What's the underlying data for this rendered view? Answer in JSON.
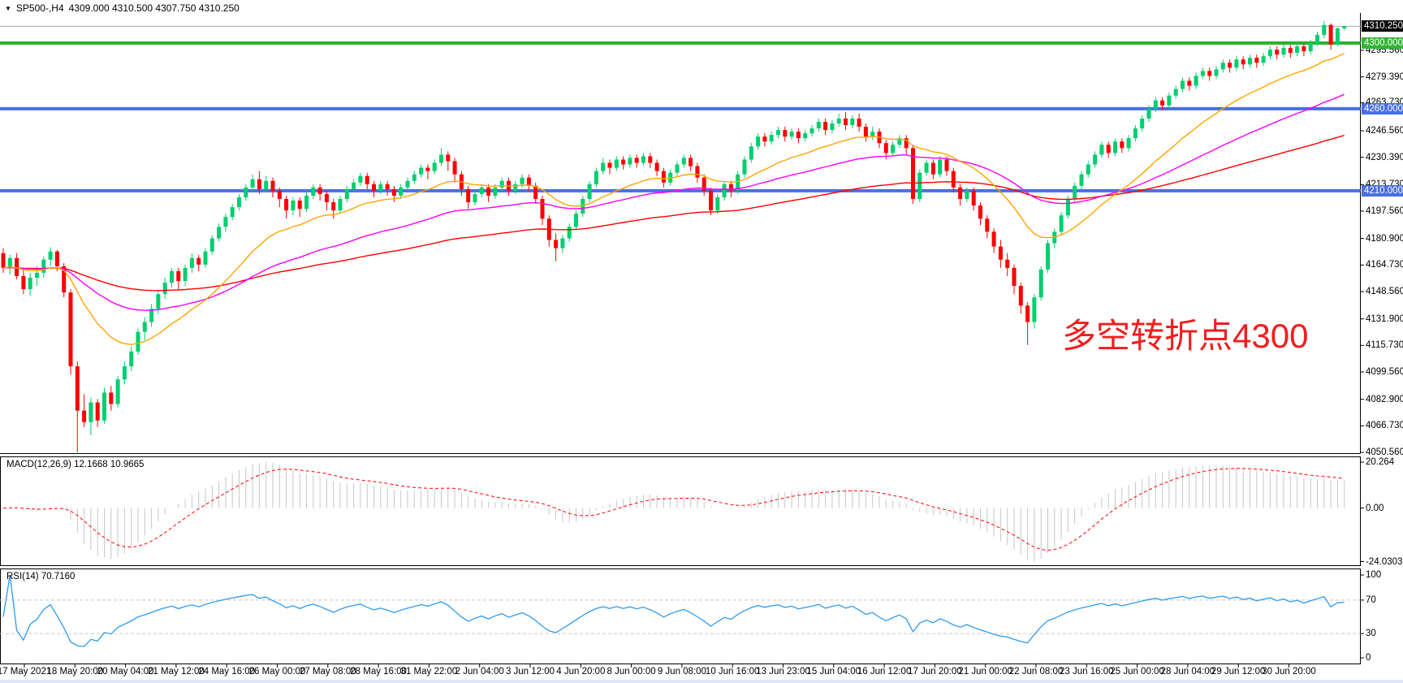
{
  "header": {
    "dropdown_icon": "▼",
    "symbol_period": "SP500-,H4",
    "ohlc_text": "4309.000 4310.500 4307.750 4310.250"
  },
  "annotation": {
    "text": "多空转折点4300"
  },
  "indicators": {
    "macd": {
      "label": "MACD(12,26,9) 12.1668 10.9665",
      "axis_labels": [
        "20.264",
        "0.00",
        "-24.0303"
      ]
    },
    "rsi": {
      "label": "RSI(14) 70.7160",
      "axis_labels": [
        "100",
        "70",
        "30",
        "0"
      ]
    }
  },
  "price_axis": {
    "tick_labels": [
      "4295.560",
      "4279.390",
      "4263.730",
      "4246.560",
      "4230.390",
      "4213.730",
      "4197.560",
      "4180.900",
      "4164.730",
      "4148.560",
      "4131.900",
      "4115.730",
      "4099.560",
      "4082.900",
      "4066.730",
      "4050.560"
    ],
    "badges": [
      {
        "text": "4310.250",
        "price": 4310.25,
        "bg": "#000000"
      },
      {
        "text": "4300.000",
        "price": 4300.0,
        "bg": "#35b435"
      },
      {
        "text": "4260.000",
        "price": 4260.0,
        "bg": "#4a6fe0"
      },
      {
        "text": "4210.000",
        "price": 4210.0,
        "bg": "#4a6fe0"
      }
    ]
  },
  "time_axis": {
    "labels": [
      "17 May 2021",
      "18 May 20:00",
      "20 May 04:00",
      "21 May 12:00",
      "24 May 16:00",
      "26 May 00:00",
      "27 May 08:00",
      "28 May 16:00",
      "31 May 22:00",
      "2 Jun 04:00",
      "3 Jun 12:00",
      "4 Jun 20:00",
      "8 Jun 00:00",
      "9 Jun 08:00",
      "10 Jun 16:00",
      "13 Jun 23:00",
      "15 Jun 04:00",
      "16 Jun 12:00",
      "17 Jun 20:00",
      "21 Jun 00:00",
      "22 Jun 08:00",
      "23 Jun 16:00",
      "25 Jun 00:00",
      "28 Jun 04:00",
      "29 Jun 12:00",
      "30 Jun 20:00"
    ]
  },
  "colors": {
    "bull": "#00cf6f",
    "bear": "#ff0000",
    "ma_fast": "#ffa500",
    "ma_mid": "#ff00ff",
    "ma_slow": "#ff0000",
    "bid_line": "#a8a8a8",
    "pivot_line": "#28b428",
    "blue_line": "#4a70e0",
    "macd_hist": "#c6c6c6",
    "macd_signal": "#ff0000",
    "rsi_line": "#2f9bf0",
    "rsi_level": "#c8c8c8",
    "annotation": "#f21d1d",
    "border": "#000000"
  },
  "chart_data": {
    "type": "candlestick",
    "symbol": "SP500-",
    "timeframe": "H4",
    "title": "SP500-,H4 4309.000 4310.500 4307.750 4310.250",
    "current_bar": {
      "open": 4309.0,
      "high": 4310.5,
      "low": 4307.75,
      "close": 4310.25
    },
    "ylim": [
      4050.56,
      4315.0
    ],
    "hlines": [
      {
        "name": "bid",
        "price": 4310.25
      },
      {
        "name": "pivot",
        "price": 4300.0
      },
      {
        "name": "resistance",
        "price": 4260.0
      },
      {
        "name": "support",
        "price": 4210.0
      }
    ],
    "overlays": [
      {
        "name": "ema-20",
        "color_key": "ma_fast",
        "period": 20
      },
      {
        "name": "ema-50",
        "color_key": "ma_mid",
        "period": 50
      },
      {
        "name": "ema-110",
        "color_key": "ma_slow",
        "period": 110
      }
    ],
    "macd": {
      "fast": 12,
      "slow": 26,
      "signal": 9,
      "last": 12.1668,
      "last_signal": 10.9665,
      "range": [
        -24.0303,
        20.264
      ]
    },
    "rsi": {
      "period": 14,
      "last": 70.716,
      "levels": [
        70,
        30
      ]
    },
    "candles": [
      [
        4172,
        4175,
        4160,
        4163
      ],
      [
        4163,
        4171,
        4159,
        4169
      ],
      [
        4169,
        4172,
        4156,
        4158
      ],
      [
        4158,
        4163,
        4147,
        4150
      ],
      [
        4150,
        4160,
        4146,
        4157
      ],
      [
        4157,
        4164,
        4152,
        4160
      ],
      [
        4160,
        4170,
        4157,
        4168
      ],
      [
        4168,
        4175.5,
        4164,
        4173
      ],
      [
        4173,
        4174,
        4161,
        4164
      ],
      [
        4164,
        4166,
        4145,
        4148
      ],
      [
        4148,
        4150,
        4098,
        4103
      ],
      [
        4103,
        4106,
        4050.56,
        4076
      ],
      [
        4076,
        4086,
        4066,
        4069
      ],
      [
        4069,
        4084,
        4061,
        4081
      ],
      [
        4081,
        4083,
        4066,
        4070
      ],
      [
        4070,
        4090,
        4068,
        4087
      ],
      [
        4087,
        4091,
        4076,
        4080
      ],
      [
        4080,
        4097,
        4078,
        4095
      ],
      [
        4095,
        4106,
        4092,
        4103
      ],
      [
        4103,
        4115,
        4100,
        4112
      ],
      [
        4112,
        4126,
        4110,
        4124
      ],
      [
        4124,
        4133,
        4119,
        4130
      ],
      [
        4130,
        4141,
        4127,
        4138
      ],
      [
        4138,
        4149,
        4135,
        4147
      ],
      [
        4147,
        4157,
        4144,
        4154
      ],
      [
        4154,
        4163,
        4151,
        4161
      ],
      [
        4161,
        4163,
        4150,
        4155
      ],
      [
        4155,
        4165,
        4152,
        4163
      ],
      [
        4163,
        4172,
        4160,
        4169
      ],
      [
        4169,
        4171,
        4161,
        4165
      ],
      [
        4165,
        4175,
        4163,
        4173
      ],
      [
        4173,
        4183,
        4171,
        4181
      ],
      [
        4181,
        4190,
        4179,
        4188
      ],
      [
        4188,
        4196,
        4185,
        4194
      ],
      [
        4194,
        4202,
        4192,
        4200
      ],
      [
        4200,
        4208,
        4198,
        4206
      ],
      [
        4206,
        4214,
        4204,
        4212
      ],
      [
        4212,
        4220,
        4210,
        4217
      ],
      [
        4217,
        4222,
        4208,
        4211
      ],
      [
        4211,
        4219,
        4209,
        4216
      ],
      [
        4216,
        4218,
        4206,
        4210
      ],
      [
        4210,
        4212,
        4200,
        4205
      ],
      [
        4205,
        4207,
        4193,
        4198
      ],
      [
        4198,
        4206,
        4195,
        4204
      ],
      [
        4204,
        4206,
        4194,
        4199
      ],
      [
        4199,
        4209,
        4197,
        4207
      ],
      [
        4207,
        4214,
        4205,
        4212
      ],
      [
        4212,
        4214,
        4204,
        4208
      ],
      [
        4208,
        4210,
        4198,
        4203
      ],
      [
        4203,
        4205,
        4193,
        4198
      ],
      [
        4198,
        4207,
        4196,
        4205
      ],
      [
        4205,
        4213,
        4203,
        4211
      ],
      [
        4211,
        4217,
        4209,
        4215
      ],
      [
        4215,
        4221,
        4213,
        4219
      ],
      [
        4219,
        4221,
        4211,
        4214
      ],
      [
        4214,
        4216,
        4206,
        4210
      ],
      [
        4210,
        4216,
        4208,
        4214
      ],
      [
        4214,
        4216,
        4207,
        4211
      ],
      [
        4211,
        4213,
        4203,
        4207
      ],
      [
        4207,
        4214,
        4205,
        4212
      ],
      [
        4212,
        4218,
        4210,
        4216
      ],
      [
        4216,
        4222,
        4214,
        4220
      ],
      [
        4220,
        4226,
        4218,
        4224
      ],
      [
        4224,
        4226,
        4217,
        4222
      ],
      [
        4222,
        4229,
        4220,
        4227
      ],
      [
        4227,
        4236,
        4225,
        4232
      ],
      [
        4232,
        4234,
        4222,
        4228
      ],
      [
        4228,
        4230,
        4215,
        4220
      ],
      [
        4220,
        4222,
        4207,
        4211
      ],
      [
        4211,
        4213,
        4199,
        4203
      ],
      [
        4203,
        4210,
        4201,
        4208
      ],
      [
        4208,
        4214,
        4206,
        4212
      ],
      [
        4212,
        4214,
        4203,
        4207
      ],
      [
        4207,
        4214,
        4205,
        4212
      ],
      [
        4212,
        4218,
        4210,
        4216
      ],
      [
        4216,
        4218,
        4207,
        4210
      ],
      [
        4210,
        4216,
        4208,
        4214
      ],
      [
        4214,
        4220,
        4212,
        4218
      ],
      [
        4218,
        4220,
        4210,
        4213
      ],
      [
        4213,
        4215,
        4202,
        4205
      ],
      [
        4205,
        4207,
        4189,
        4193
      ],
      [
        4193,
        4195,
        4176,
        4180
      ],
      [
        4180,
        4184,
        4167,
        4175
      ],
      [
        4175,
        4183,
        4172,
        4181
      ],
      [
        4181,
        4190,
        4179,
        4188
      ],
      [
        4188,
        4198,
        4186,
        4196
      ],
      [
        4196,
        4207,
        4194,
        4205
      ],
      [
        4205,
        4216,
        4203,
        4214
      ],
      [
        4214,
        4224,
        4212,
        4222
      ],
      [
        4222,
        4230,
        4220,
        4227
      ],
      [
        4227,
        4229,
        4220,
        4224
      ],
      [
        4224,
        4231,
        4222,
        4229
      ],
      [
        4229,
        4231,
        4223,
        4226
      ],
      [
        4226,
        4232,
        4224,
        4230
      ],
      [
        4230,
        4232,
        4224,
        4227
      ],
      [
        4227,
        4233,
        4225,
        4231
      ],
      [
        4231,
        4233,
        4224,
        4227
      ],
      [
        4227,
        4229,
        4219,
        4222
      ],
      [
        4222,
        4224,
        4212,
        4215
      ],
      [
        4215,
        4223,
        4213,
        4221
      ],
      [
        4221,
        4228,
        4219,
        4226
      ],
      [
        4226,
        4232,
        4224,
        4230
      ],
      [
        4230,
        4232,
        4222,
        4225
      ],
      [
        4225,
        4227,
        4215,
        4218
      ],
      [
        4218,
        4220,
        4207,
        4210
      ],
      [
        4210,
        4212,
        4195,
        4198
      ],
      [
        4198,
        4208,
        4196,
        4206
      ],
      [
        4206,
        4216,
        4204,
        4214
      ],
      [
        4214,
        4216,
        4206,
        4210
      ],
      [
        4210,
        4222,
        4208,
        4220
      ],
      [
        4220,
        4231,
        4218,
        4229
      ],
      [
        4229,
        4239,
        4227,
        4237
      ],
      [
        4237,
        4245,
        4235,
        4243
      ],
      [
        4243,
        4245,
        4237,
        4240
      ],
      [
        4240,
        4246,
        4238,
        4244
      ],
      [
        4244,
        4249,
        4242,
        4247
      ],
      [
        4247,
        4249,
        4240,
        4243
      ],
      [
        4243,
        4248,
        4241,
        4246
      ],
      [
        4246,
        4248,
        4239,
        4242
      ],
      [
        4242,
        4247,
        4240,
        4245
      ],
      [
        4245,
        4250,
        4243,
        4248
      ],
      [
        4248,
        4254,
        4246,
        4252
      ],
      [
        4252,
        4254,
        4244,
        4247
      ],
      [
        4247,
        4253,
        4245,
        4251
      ],
      [
        4251,
        4257,
        4249,
        4254
      ],
      [
        4254,
        4258,
        4247,
        4250
      ],
      [
        4250,
        4256,
        4248,
        4254
      ],
      [
        4254,
        4257,
        4246,
        4249
      ],
      [
        4249,
        4251,
        4240,
        4243
      ],
      [
        4243,
        4249,
        4241,
        4246
      ],
      [
        4246,
        4248,
        4236,
        4239
      ],
      [
        4239,
        4241,
        4229,
        4233
      ],
      [
        4233,
        4240,
        4231,
        4238
      ],
      [
        4238,
        4244,
        4236,
        4242
      ],
      [
        4242,
        4244,
        4232,
        4236
      ],
      [
        4236,
        4238,
        4202,
        4205
      ],
      [
        4205,
        4223,
        4203,
        4221
      ],
      [
        4221,
        4229,
        4219,
        4227
      ],
      [
        4227,
        4229,
        4217,
        4220
      ],
      [
        4220,
        4231,
        4218,
        4229
      ],
      [
        4229,
        4231,
        4219,
        4222
      ],
      [
        4222,
        4224,
        4209,
        4212
      ],
      [
        4212,
        4214,
        4201,
        4205
      ],
      [
        4205,
        4212,
        4203,
        4210
      ],
      [
        4210,
        4212,
        4198,
        4201
      ],
      [
        4201,
        4203,
        4189,
        4193
      ],
      [
        4193,
        4195,
        4181,
        4185
      ],
      [
        4185,
        4187,
        4172,
        4176
      ],
      [
        4176,
        4180,
        4163,
        4168
      ],
      [
        4168,
        4172,
        4158,
        4163
      ],
      [
        4163,
        4165,
        4147,
        4152
      ],
      [
        4152,
        4154,
        4135,
        4140
      ],
      [
        4140,
        4142,
        4116,
        4130
      ],
      [
        4130,
        4147,
        4126,
        4145
      ],
      [
        4145,
        4164,
        4143,
        4162
      ],
      [
        4162,
        4180,
        4160,
        4178
      ],
      [
        4178,
        4187,
        4175,
        4185
      ],
      [
        4185,
        4197,
        4183,
        4195
      ],
      [
        4195,
        4207,
        4193,
        4205
      ],
      [
        4205,
        4215,
        4203,
        4213
      ],
      [
        4213,
        4222,
        4211,
        4220
      ],
      [
        4220,
        4228,
        4218,
        4226
      ],
      [
        4226,
        4234,
        4224,
        4232
      ],
      [
        4232,
        4240,
        4230,
        4238
      ],
      [
        4238,
        4240,
        4230,
        4233
      ],
      [
        4233,
        4242,
        4231,
        4240
      ],
      [
        4240,
        4242,
        4233,
        4236
      ],
      [
        4236,
        4244,
        4234,
        4242
      ],
      [
        4242,
        4250,
        4240,
        4248
      ],
      [
        4248,
        4256,
        4246,
        4254
      ],
      [
        4254,
        4262,
        4252,
        4260
      ],
      [
        4260,
        4267,
        4258,
        4265
      ],
      [
        4265,
        4267,
        4259,
        4262
      ],
      [
        4262,
        4270,
        4260,
        4268
      ],
      [
        4268,
        4274,
        4266,
        4272
      ],
      [
        4272,
        4279,
        4270,
        4277
      ],
      [
        4277,
        4279,
        4271,
        4274
      ],
      [
        4274,
        4282,
        4272,
        4280
      ],
      [
        4280,
        4285,
        4278,
        4283
      ],
      [
        4283,
        4285,
        4277,
        4280
      ],
      [
        4280,
        4286,
        4278,
        4284
      ],
      [
        4284,
        4290,
        4282,
        4288
      ],
      [
        4288,
        4290,
        4282,
        4285
      ],
      [
        4285,
        4292,
        4283,
        4290
      ],
      [
        4290,
        4292,
        4284,
        4287
      ],
      [
        4287,
        4293,
        4285,
        4291
      ],
      [
        4291,
        4293,
        4285,
        4288
      ],
      [
        4288,
        4294,
        4286,
        4292
      ],
      [
        4292,
        4298,
        4290,
        4296
      ],
      [
        4296,
        4298,
        4290,
        4293
      ],
      [
        4293,
        4299,
        4291,
        4297
      ],
      [
        4297,
        4299,
        4291,
        4294
      ],
      [
        4294,
        4300,
        4292,
        4298
      ],
      [
        4298,
        4300,
        4292,
        4295
      ],
      [
        4295,
        4302,
        4293,
        4300
      ],
      [
        4300,
        4307,
        4298,
        4305
      ],
      [
        4305,
        4313.5,
        4303,
        4311
      ],
      [
        4311,
        4312,
        4296,
        4299
      ],
      [
        4299,
        4309.5,
        4298,
        4309
      ],
      [
        4309,
        4310.5,
        4307.75,
        4310.25
      ]
    ]
  }
}
